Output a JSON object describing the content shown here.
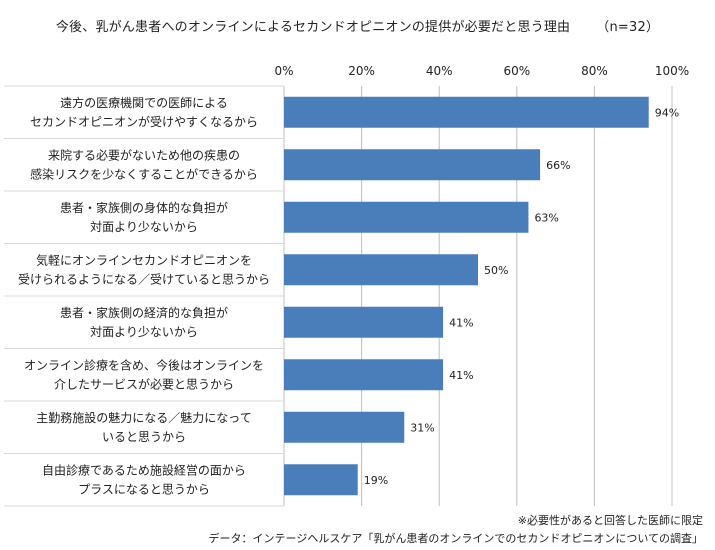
{
  "chart_data": {
    "type": "bar",
    "orientation": "horizontal",
    "title": "今後、乳がん患者へのオンラインによるセカンドオピニオンの提供が必要だと思う理由",
    "sample_size": "（n=32）",
    "categories": [
      [
        "遠方の医療機関での医師による",
        "セカンドオピニオンが受けやすくなるから"
      ],
      [
        "来院する必要がないため他の疾患の",
        "感染リスクを少なくすることができるから"
      ],
      [
        "患者・家族側の身体的な負担が",
        "対面より少ないから"
      ],
      [
        "気軽にオンラインセカンドオピニオンを",
        "受けられるようになる／受けていると思うから"
      ],
      [
        "患者・家族側の経済的な負担が",
        "対面より少ないから"
      ],
      [
        "オンライン診療を含め、今後はオンラインを",
        "介したサービスが必要と思うから"
      ],
      [
        "主勤務施設の魅力になる／魅力になって",
        "いると思うから"
      ],
      [
        "自由診療であるため施設経営の面から",
        "プラスになると思うから"
      ]
    ],
    "values": [
      94,
      66,
      63,
      50,
      41,
      41,
      31,
      19
    ],
    "value_labels": [
      "94%",
      "66%",
      "63%",
      "50%",
      "41%",
      "41%",
      "31%",
      "19%"
    ],
    "xlim": [
      0,
      100
    ],
    "x_ticks": [
      0,
      20,
      40,
      60,
      80,
      100
    ],
    "x_tick_labels": [
      "0%",
      "20%",
      "40%",
      "60%",
      "80%",
      "100%"
    ],
    "axis_position": "top",
    "grid": true,
    "bar_color": "#4a7ebb",
    "grid_color": "#bfbfbf",
    "separator_color": "#d9d9d9"
  },
  "footnote": "※必要性があると回答した医師に限定",
  "source": "データ：インテージヘルスケア「乳がん患者のオンラインでのセカンドオピニオンについての調査」"
}
